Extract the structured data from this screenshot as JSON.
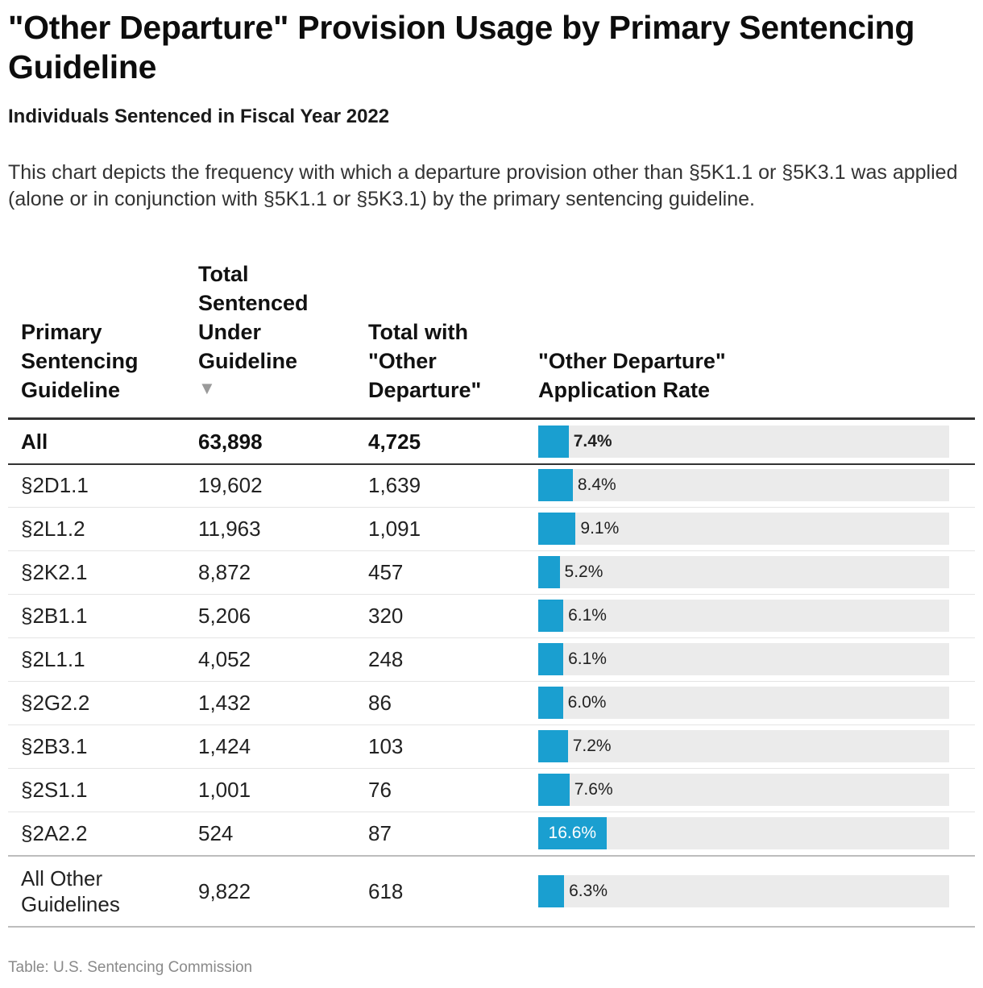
{
  "title": "\"Other Departure\" Provision Usage by Primary Sentencing Guideline",
  "subtitle": "Individuals Sentenced in Fiscal Year 2022",
  "description": "This chart depicts the frequency with which a departure provision other than §5K1.1 or §5K3.1 was applied (alone or in conjunction with §5K1.1 or §5K3.1) by the primary sentencing guideline.",
  "columns": {
    "guideline": "Primary Sentencing Guideline",
    "total": "Total Sentenced Under Guideline",
    "sort_indicator": "▼",
    "other": "Total with \"Other Departure\"",
    "rate": "\"Other Departure\" Application Rate"
  },
  "source": "Table: U.S. Sentencing Commission",
  "colors": {
    "bar": "#1a9fd0",
    "track": "#ebebeb"
  },
  "chart_data": {
    "type": "table",
    "title": "\"Other Departure\" Provision Usage by Primary Sentencing Guideline",
    "rate_axis": [
      0,
      100
    ],
    "rows": [
      {
        "guideline": "All",
        "total": "63,898",
        "other": "4,725",
        "rate": 7.4,
        "rate_label": "7.4%"
      },
      {
        "guideline": "§2D1.1",
        "total": "19,602",
        "other": "1,639",
        "rate": 8.4,
        "rate_label": "8.4%"
      },
      {
        "guideline": "§2L1.2",
        "total": "11,963",
        "other": "1,091",
        "rate": 9.1,
        "rate_label": "9.1%"
      },
      {
        "guideline": "§2K2.1",
        "total": "8,872",
        "other": "457",
        "rate": 5.2,
        "rate_label": "5.2%"
      },
      {
        "guideline": "§2B1.1",
        "total": "5,206",
        "other": "320",
        "rate": 6.1,
        "rate_label": "6.1%"
      },
      {
        "guideline": "§2L1.1",
        "total": "4,052",
        "other": "248",
        "rate": 6.1,
        "rate_label": "6.1%"
      },
      {
        "guideline": "§2G2.2",
        "total": "1,432",
        "other": "86",
        "rate": 6.0,
        "rate_label": "6.0%"
      },
      {
        "guideline": "§2B3.1",
        "total": "1,424",
        "other": "103",
        "rate": 7.2,
        "rate_label": "7.2%"
      },
      {
        "guideline": "§2S1.1",
        "total": "1,001",
        "other": "76",
        "rate": 7.6,
        "rate_label": "7.6%"
      },
      {
        "guideline": "§2A2.2",
        "total": "524",
        "other": "87",
        "rate": 16.6,
        "rate_label": "16.6%"
      },
      {
        "guideline": "All Other Guidelines",
        "total": "9,822",
        "other": "618",
        "rate": 6.3,
        "rate_label": "6.3%"
      }
    ]
  }
}
